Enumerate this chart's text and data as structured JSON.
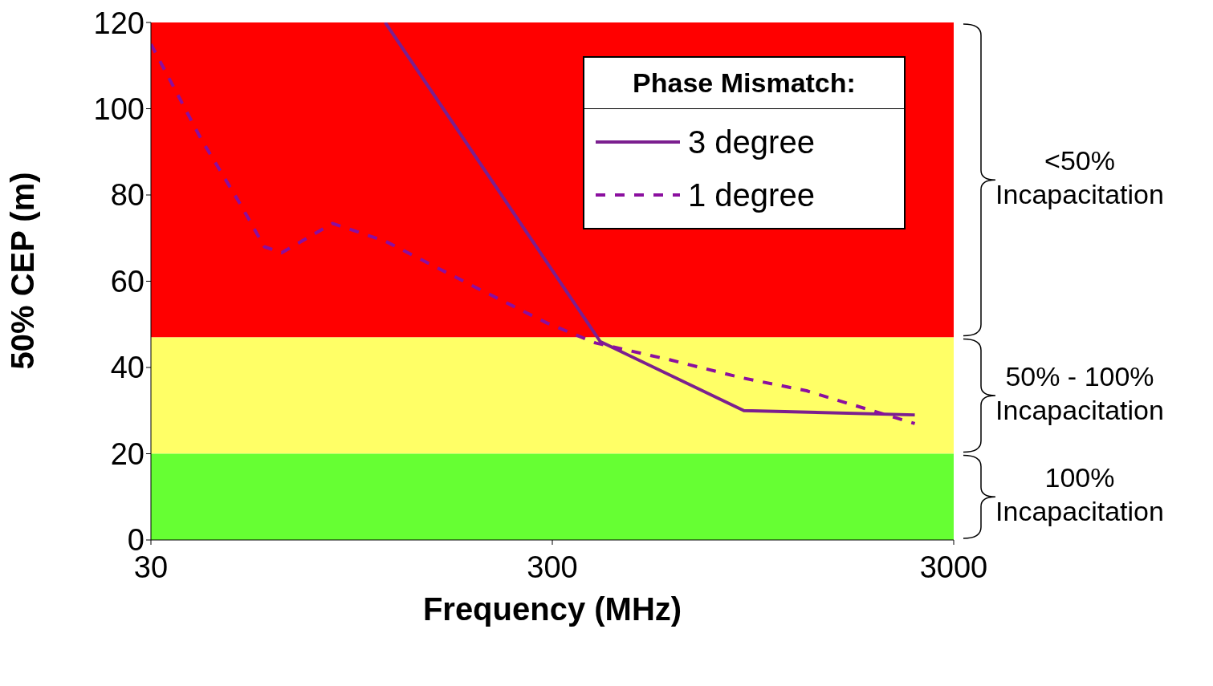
{
  "chart_data": {
    "type": "line",
    "xlabel": "Frequency (MHz)",
    "ylabel": "50% CEP (m)",
    "legend_title": "Phase Mismatch:",
    "log": "x",
    "xlim": [
      30,
      3000
    ],
    "xticks": [
      30,
      300,
      3000
    ],
    "ylim": [
      0,
      120
    ],
    "yticks": [
      0,
      20,
      40,
      60,
      80,
      100,
      120
    ],
    "grid": false,
    "legend": "top right",
    "marker": "none",
    "bands": [
      {
        "axis": "y",
        "from": 47,
        "to": 120,
        "label": "<50% Incapacitation",
        "color": "#ff0000"
      },
      {
        "axis": "y",
        "from": 20,
        "to": 47,
        "label": "50% - 100% Incapacitation",
        "color": "#ffff66"
      },
      {
        "axis": "y",
        "from": 0,
        "to": 20,
        "label": "100% Incapacitation",
        "color": "#66ff33"
      }
    ],
    "series": [
      {
        "name": "3 degree",
        "color": "#7b1f8f",
        "line_style": "solid",
        "x": [
          115,
          395,
          900,
          2400
        ],
        "values": [
          120,
          46,
          30,
          29
        ]
      },
      {
        "name": "1 degree",
        "color": "#8b0f9f",
        "line_style": "dashed",
        "x": [
          30,
          40,
          50,
          57.5,
          63.5,
          85,
          115,
          192,
          291,
          384,
          587,
          890,
          1290,
          1700,
          2400
        ],
        "values": [
          115,
          93,
          78,
          68,
          66.6,
          73.4,
          69.3,
          58.7,
          50.3,
          45.7,
          41.8,
          37.6,
          34.6,
          31.2,
          27
        ]
      }
    ]
  }
}
